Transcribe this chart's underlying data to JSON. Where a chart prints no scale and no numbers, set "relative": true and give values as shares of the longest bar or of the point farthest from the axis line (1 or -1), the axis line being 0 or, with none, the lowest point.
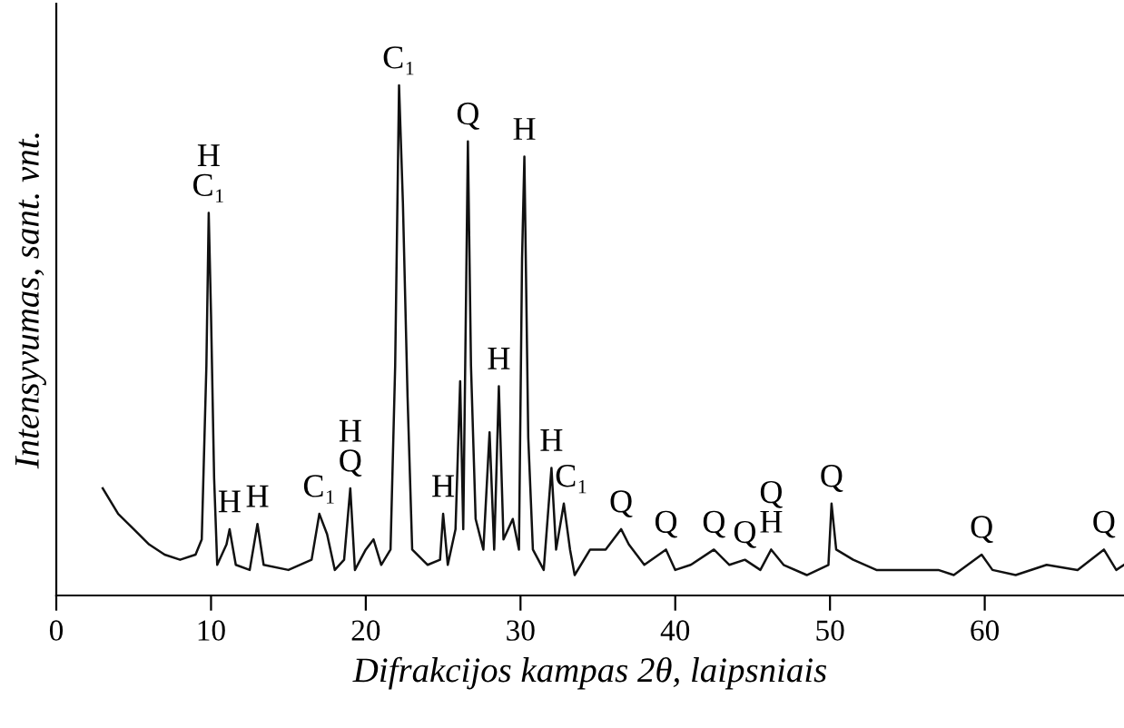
{
  "chart_data": {
    "type": "line",
    "relative": true,
    "xlabel": "Difrakcijos kampas 2θ, laipsniais",
    "ylabel": "Intensyvumas, sant. vnt.",
    "xlim": [
      0,
      69
    ],
    "xticks": [
      0,
      10,
      20,
      30,
      40,
      50,
      60
    ],
    "grid": false,
    "marker": "none",
    "line_style": "solid",
    "series": [
      {
        "color": "#111111",
        "x": [
          3.0,
          4,
          5,
          6,
          7,
          8,
          9,
          9.4,
          9.7,
          9.85,
          10.0,
          10.2,
          10.4,
          11,
          11.2,
          11.6,
          12.5,
          13.0,
          13.4,
          15,
          16.5,
          17.0,
          17.5,
          18,
          18.6,
          19.0,
          19.3,
          20.0,
          20.5,
          21.0,
          21.6,
          21.9,
          22.15,
          22.4,
          22.7,
          23.0,
          24,
          24.8,
          25.0,
          25.3,
          25.8,
          26.1,
          26.3,
          26.6,
          26.8,
          27.1,
          27.6,
          28.0,
          28.3,
          28.6,
          28.9,
          29.5,
          29.9,
          30.1,
          30.25,
          30.5,
          30.8,
          31.5,
          32.0,
          32.3,
          32.8,
          33.2,
          33.5,
          34.5,
          35.5,
          36.5,
          37.0,
          38,
          39.4,
          40,
          41,
          42.5,
          43.5,
          44.5,
          45.5,
          46.2,
          47,
          48.5,
          49.9,
          50.1,
          50.4,
          51.5,
          53,
          55,
          57,
          58,
          59.8,
          60.5,
          62,
          64,
          66,
          67.7,
          68.5,
          69
        ],
        "values": [
          0.21,
          0.16,
          0.13,
          0.1,
          0.08,
          0.07,
          0.08,
          0.11,
          0.45,
          0.75,
          0.55,
          0.23,
          0.06,
          0.1,
          0.13,
          0.06,
          0.05,
          0.14,
          0.06,
          0.05,
          0.07,
          0.16,
          0.12,
          0.05,
          0.07,
          0.21,
          0.05,
          0.09,
          0.11,
          0.06,
          0.09,
          0.45,
          1,
          0.77,
          0.39,
          0.09,
          0.06,
          0.07,
          0.16,
          0.06,
          0.13,
          0.42,
          0.13,
          0.89,
          0.45,
          0.15,
          0.09,
          0.32,
          0.09,
          0.41,
          0.11,
          0.15,
          0.09,
          0.66,
          0.86,
          0.31,
          0.09,
          0.05,
          0.25,
          0.09,
          0.18,
          0.09,
          0.04,
          0.09,
          0.09,
          0.13,
          0.1,
          0.06,
          0.09,
          0.05,
          0.06,
          0.09,
          0.06,
          0.07,
          0.05,
          0.09,
          0.06,
          0.04,
          0.06,
          0.18,
          0.09,
          0.07,
          0.05,
          0.05,
          0.05,
          0.04,
          0.08,
          0.05,
          0.04,
          0.06,
          0.05,
          0.09,
          0.05,
          0.06
        ]
      }
    ],
    "annotations": [
      {
        "text": "H\nC₁",
        "x": 9.85,
        "y": 0.75
      },
      {
        "text": "H",
        "x": 11.2,
        "y": 0.13
      },
      {
        "text": "H",
        "x": 13.0,
        "y": 0.14
      },
      {
        "text": "C₁",
        "x": 17.0,
        "y": 0.16
      },
      {
        "text": "H\nQ",
        "x": 19.0,
        "y": 0.21
      },
      {
        "text": "C₁",
        "x": 22.15,
        "y": 1
      },
      {
        "text": "H",
        "x": 25.0,
        "y": 0.16
      },
      {
        "text": "Q",
        "x": 26.6,
        "y": 0.89
      },
      {
        "text": "H",
        "x": 28.6,
        "y": 0.41
      },
      {
        "text": "H",
        "x": 30.25,
        "y": 0.86
      },
      {
        "text": "H",
        "x": 32.0,
        "y": 0.25
      },
      {
        "text": "C₁",
        "x": 33.3,
        "y": 0.18
      },
      {
        "text": "Q",
        "x": 36.5,
        "y": 0.13
      },
      {
        "text": "Q",
        "x": 39.4,
        "y": 0.09
      },
      {
        "text": "Q",
        "x": 42.5,
        "y": 0.09
      },
      {
        "text": "Q",
        "x": 44.5,
        "y": 0.07
      },
      {
        "text": "Q\nH",
        "x": 46.2,
        "y": 0.09
      },
      {
        "text": "Q",
        "x": 50.1,
        "y": 0.18
      },
      {
        "text": "Q",
        "x": 59.8,
        "y": 0.08
      },
      {
        "text": "Q",
        "x": 67.7,
        "y": 0.09
      }
    ]
  }
}
